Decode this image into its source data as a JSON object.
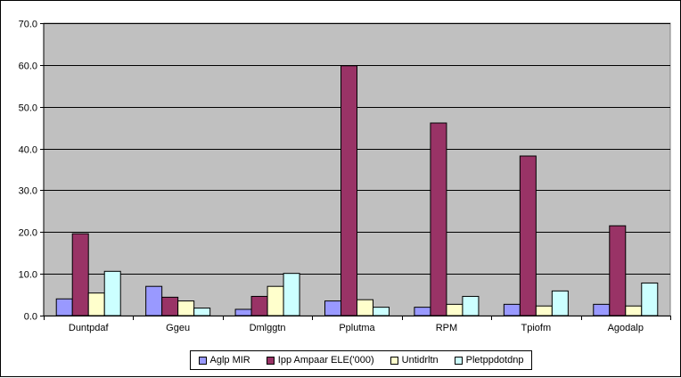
{
  "chart_data": {
    "type": "bar",
    "title": "",
    "xlabel": "",
    "ylabel": "",
    "ylim": [
      0,
      70
    ],
    "yticks": [
      "0.0",
      "10.0",
      "20.0",
      "30.0",
      "40.0",
      "50.0",
      "60.0",
      "70.0"
    ],
    "grid": true,
    "legend_position": "bottom",
    "plot_background": "#c0c0c0",
    "categories": [
      "Duntpdaf",
      "Ggeu",
      "Dmlggtn",
      "Pplutma",
      "RPM",
      "Tpiofm",
      "Agodalp"
    ],
    "series": [
      {
        "name": "Aglp MIR",
        "color": "#9999ff",
        "values": [
          4.0,
          7.0,
          1.5,
          3.5,
          2.0,
          2.7,
          2.7
        ]
      },
      {
        "name": "Ipp Ampaar ELE('000)",
        "color": "#993366",
        "values": [
          19.6,
          4.4,
          4.6,
          59.8,
          46.1,
          38.2,
          21.5
        ]
      },
      {
        "name": "Untidrltn",
        "color": "#ffffcc",
        "values": [
          5.4,
          3.5,
          7.0,
          3.8,
          2.7,
          2.3,
          2.3
        ]
      },
      {
        "name": "Pletppdotdnp",
        "color": "#ccffff",
        "values": [
          10.6,
          1.8,
          10.1,
          2.0,
          4.6,
          5.9,
          7.8
        ]
      }
    ]
  }
}
